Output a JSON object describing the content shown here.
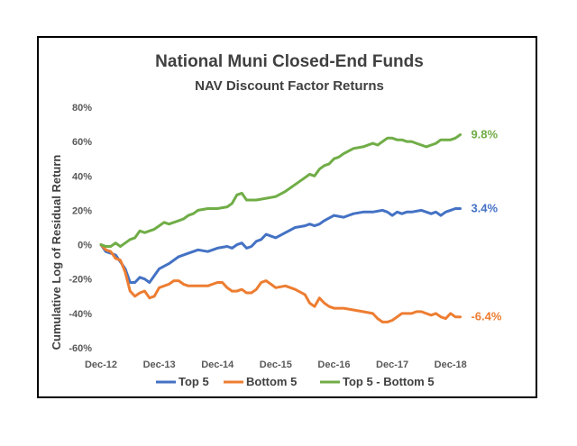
{
  "chart_data": {
    "type": "line",
    "title": "National Muni Closed-End Funds",
    "subtitle": "NAV Discount Factor Returns",
    "ylabel": "Cumulative Log of Residual Return",
    "xlabel": "",
    "x_start": "Dec-12",
    "x_end": "Jun-19",
    "x_ticks": [
      "Dec-12",
      "Dec-13",
      "Dec-14",
      "Dec-15",
      "Dec-16",
      "Dec-17",
      "Dec-18"
    ],
    "ylim": [
      -60,
      80
    ],
    "y_ticks": [
      -60,
      -40,
      -20,
      0,
      20,
      40,
      60,
      80
    ],
    "y_tick_labels": [
      "-60%",
      "-40%",
      "-20%",
      "0%",
      "20%",
      "40%",
      "60%",
      "80%"
    ],
    "grid": false,
    "legend": "bottom",
    "series": [
      {
        "name": "Top 5",
        "color": "#4472c4",
        "end_label": "3.4%",
        "anchors": [
          [
            0,
            0
          ],
          [
            1,
            -4
          ],
          [
            3,
            -6
          ],
          [
            5,
            -14
          ],
          [
            6,
            -22
          ],
          [
            7,
            -22
          ],
          [
            8,
            -19
          ],
          [
            9,
            -20
          ],
          [
            10,
            -22
          ],
          [
            11,
            -18
          ],
          [
            12,
            -14
          ],
          [
            14,
            -11
          ],
          [
            16,
            -7
          ],
          [
            18,
            -5
          ],
          [
            20,
            -3
          ],
          [
            22,
            -4
          ],
          [
            24,
            -2
          ],
          [
            26,
            -1
          ],
          [
            27,
            -2
          ],
          [
            28,
            0
          ],
          [
            29,
            1
          ],
          [
            30,
            -2
          ],
          [
            31,
            -1
          ],
          [
            32,
            2
          ],
          [
            33,
            3
          ],
          [
            34,
            6
          ],
          [
            36,
            4
          ],
          [
            38,
            7
          ],
          [
            40,
            10
          ],
          [
            42,
            11
          ],
          [
            43,
            12
          ],
          [
            44,
            11
          ],
          [
            45,
            12
          ],
          [
            46,
            14
          ],
          [
            48,
            17
          ],
          [
            50,
            16
          ],
          [
            51,
            17
          ],
          [
            52,
            18
          ],
          [
            54,
            19
          ],
          [
            56,
            19
          ],
          [
            58,
            20
          ],
          [
            59,
            19
          ],
          [
            60,
            17
          ],
          [
            61,
            19
          ],
          [
            62,
            18
          ],
          [
            63,
            19
          ],
          [
            64,
            19
          ],
          [
            66,
            20
          ],
          [
            67,
            19
          ],
          [
            68,
            18
          ],
          [
            69,
            19
          ],
          [
            70,
            17
          ],
          [
            71,
            19
          ],
          [
            72,
            20
          ],
          [
            73,
            21
          ],
          [
            74,
            21
          ]
        ]
      },
      {
        "name": "Bottom 5",
        "color": "#ed7d31",
        "end_label": "-6.4%",
        "anchors": [
          [
            0,
            0
          ],
          [
            1,
            -3
          ],
          [
            2,
            -4
          ],
          [
            3,
            -8
          ],
          [
            4,
            -9
          ],
          [
            5,
            -16
          ],
          [
            6,
            -27
          ],
          [
            7,
            -30
          ],
          [
            8,
            -28
          ],
          [
            9,
            -27
          ],
          [
            10,
            -31
          ],
          [
            11,
            -30
          ],
          [
            12,
            -25
          ],
          [
            14,
            -23
          ],
          [
            15,
            -21
          ],
          [
            16,
            -21
          ],
          [
            17,
            -23
          ],
          [
            18,
            -24
          ],
          [
            20,
            -24
          ],
          [
            22,
            -24
          ],
          [
            23,
            -23
          ],
          [
            24,
            -22
          ],
          [
            25,
            -22
          ],
          [
            26,
            -25
          ],
          [
            27,
            -27
          ],
          [
            28,
            -27
          ],
          [
            29,
            -26
          ],
          [
            30,
            -28
          ],
          [
            31,
            -28
          ],
          [
            32,
            -26
          ],
          [
            33,
            -22
          ],
          [
            34,
            -21
          ],
          [
            35,
            -23
          ],
          [
            36,
            -25
          ],
          [
            38,
            -24
          ],
          [
            40,
            -26
          ],
          [
            42,
            -29
          ],
          [
            43,
            -34
          ],
          [
            44,
            -36
          ],
          [
            45,
            -31
          ],
          [
            46,
            -34
          ],
          [
            47,
            -36
          ],
          [
            48,
            -37
          ],
          [
            50,
            -37
          ],
          [
            52,
            -38
          ],
          [
            54,
            -39
          ],
          [
            56,
            -40
          ],
          [
            57,
            -43
          ],
          [
            58,
            -45
          ],
          [
            59,
            -45
          ],
          [
            60,
            -44
          ],
          [
            61,
            -42
          ],
          [
            62,
            -40
          ],
          [
            64,
            -40
          ],
          [
            65,
            -39
          ],
          [
            66,
            -39
          ],
          [
            67,
            -40
          ],
          [
            68,
            -41
          ],
          [
            69,
            -40
          ],
          [
            70,
            -42
          ],
          [
            71,
            -43
          ],
          [
            72,
            -40
          ],
          [
            73,
            -42
          ],
          [
            74,
            -42
          ]
        ]
      },
      {
        "name": "Top 5 - Bottom 5",
        "color": "#70ad47",
        "end_label": "9.8%",
        "anchors": [
          [
            0,
            0
          ],
          [
            1,
            -1
          ],
          [
            2,
            -1
          ],
          [
            3,
            1
          ],
          [
            4,
            -1
          ],
          [
            5,
            1
          ],
          [
            6,
            3
          ],
          [
            7,
            4
          ],
          [
            8,
            8
          ],
          [
            9,
            7
          ],
          [
            10,
            8
          ],
          [
            11,
            9
          ],
          [
            12,
            11
          ],
          [
            13,
            13
          ],
          [
            14,
            12
          ],
          [
            15,
            13
          ],
          [
            16,
            14
          ],
          [
            17,
            15
          ],
          [
            18,
            17
          ],
          [
            19,
            18
          ],
          [
            20,
            20
          ],
          [
            22,
            21
          ],
          [
            24,
            21
          ],
          [
            26,
            22
          ],
          [
            27,
            24
          ],
          [
            28,
            29
          ],
          [
            29,
            30
          ],
          [
            30,
            26
          ],
          [
            31,
            26
          ],
          [
            32,
            26
          ],
          [
            34,
            27
          ],
          [
            36,
            28
          ],
          [
            38,
            31
          ],
          [
            40,
            35
          ],
          [
            42,
            39
          ],
          [
            43,
            41
          ],
          [
            44,
            40
          ],
          [
            45,
            44
          ],
          [
            46,
            46
          ],
          [
            47,
            47
          ],
          [
            48,
            50
          ],
          [
            49,
            51
          ],
          [
            50,
            53
          ],
          [
            52,
            56
          ],
          [
            54,
            57
          ],
          [
            56,
            59
          ],
          [
            57,
            58
          ],
          [
            58,
            60
          ],
          [
            59,
            62
          ],
          [
            60,
            62
          ],
          [
            61,
            61
          ],
          [
            62,
            61
          ],
          [
            63,
            60
          ],
          [
            64,
            60
          ],
          [
            65,
            59
          ],
          [
            66,
            58
          ],
          [
            67,
            57
          ],
          [
            68,
            58
          ],
          [
            69,
            59
          ],
          [
            70,
            61
          ],
          [
            71,
            61
          ],
          [
            72,
            61
          ],
          [
            73,
            62
          ],
          [
            74,
            64
          ]
        ]
      }
    ]
  }
}
